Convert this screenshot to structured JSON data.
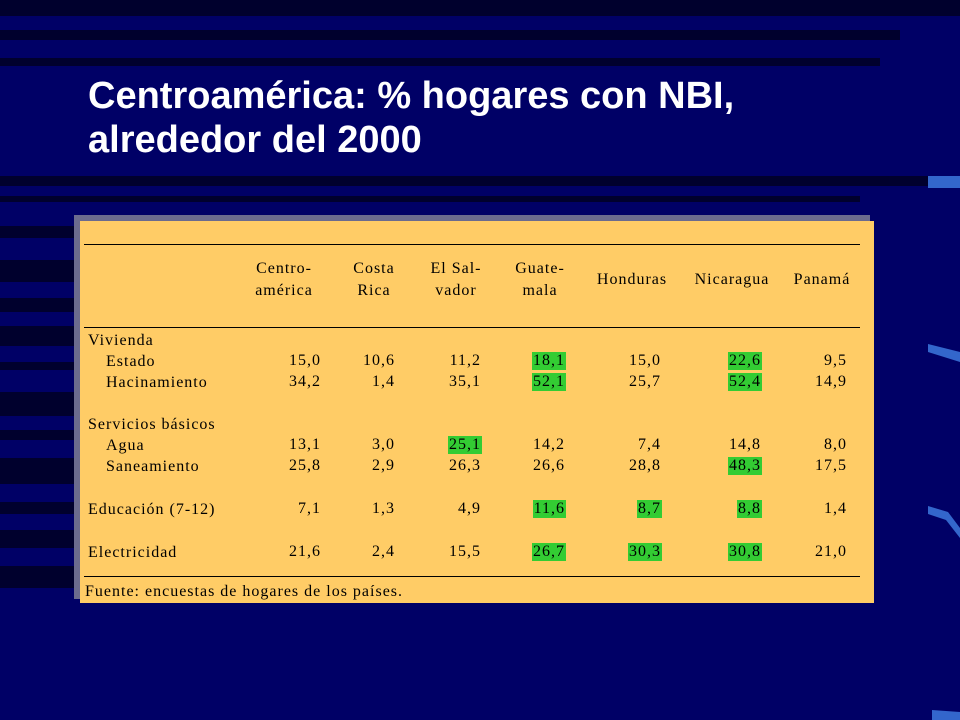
{
  "title": {
    "line1": "Centroamérica: % hogares con NBI,",
    "line2": "alrededor del 2000"
  },
  "table": {
    "columns": [
      {
        "line1": "Centro-",
        "line2": "américa"
      },
      {
        "line1": "Costa",
        "line2": "Rica"
      },
      {
        "line1": "El Sal-",
        "line2": "vador"
      },
      {
        "line1": "Guate-",
        "line2": "mala"
      },
      {
        "line1": "Honduras",
        "line2": ""
      },
      {
        "line1": "Nicaragua",
        "line2": ""
      },
      {
        "line1": "Panamá",
        "line2": ""
      }
    ],
    "sections": [
      {
        "label": "Vivienda"
      },
      {
        "label": "Servicios básicos"
      }
    ],
    "rows": [
      {
        "label": "Estado",
        "values": [
          "15,0",
          "10,6",
          "11,2",
          "18,1",
          "15,0",
          "22,6",
          "9,5"
        ],
        "highlight": [
          false,
          false,
          false,
          true,
          false,
          true,
          false
        ]
      },
      {
        "label": "Hacinamiento",
        "values": [
          "34,2",
          "1,4",
          "35,1",
          "52,1",
          "25,7",
          "52,4",
          "14,9"
        ],
        "highlight": [
          false,
          false,
          false,
          true,
          false,
          true,
          false
        ]
      },
      {
        "label": "Agua",
        "values": [
          "13,1",
          "3,0",
          "25,1",
          "14,2",
          "7,4",
          "14,8",
          "8,0"
        ],
        "highlight": [
          false,
          false,
          true,
          false,
          false,
          false,
          false
        ]
      },
      {
        "label": "Saneamiento",
        "values": [
          "25,8",
          "2,9",
          "26,3",
          "26,6",
          "28,8",
          "48,3",
          "17,5"
        ],
        "highlight": [
          false,
          false,
          false,
          false,
          false,
          true,
          false
        ]
      },
      {
        "label": "Educación (7-12)",
        "values": [
          "7,1",
          "1,3",
          "4,9",
          "11,6",
          "8,7",
          "8,8",
          "1,4"
        ],
        "highlight": [
          false,
          false,
          false,
          true,
          true,
          true,
          false
        ]
      },
      {
        "label": "Electricidad",
        "values": [
          "21,6",
          "2,4",
          "15,5",
          "26,7",
          "30,3",
          "30,8",
          "21,0"
        ],
        "highlight": [
          false,
          false,
          false,
          true,
          true,
          true,
          false
        ]
      }
    ],
    "source": "Fuente: encuestas de hogares de los países."
  },
  "colors": {
    "background": "#000066",
    "table_fill": "#ffcc66",
    "highlight": "#33cc33",
    "title_text": "#ffffff"
  }
}
